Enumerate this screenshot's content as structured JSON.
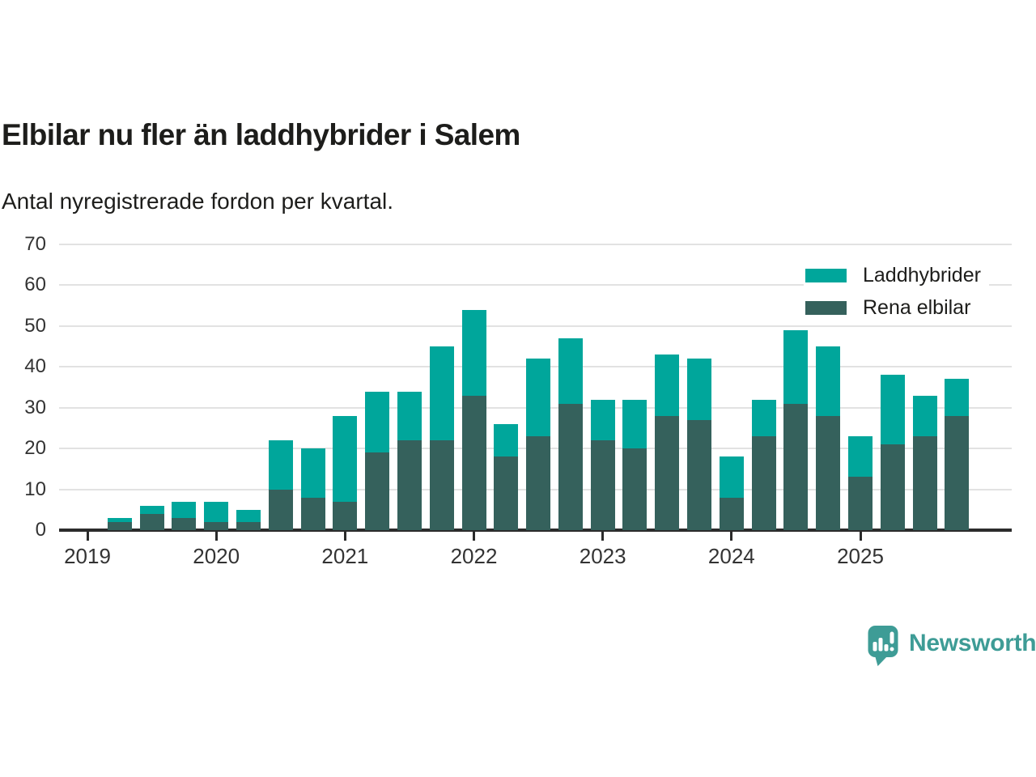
{
  "header": {
    "title": "Elbilar nu fler än laddhybrider i Salem",
    "subtitle": "Antal nyregistrerade fordon per kvartal."
  },
  "chart_data": {
    "type": "bar",
    "stacked": true,
    "title": "Elbilar nu fler än laddhybrider i Salem",
    "subtitle": "Antal nyregistrerade fordon per kvartal.",
    "x": [
      "2019 Q2",
      "2019 Q3",
      "2019 Q4",
      "2020 Q1",
      "2020 Q2",
      "2020 Q3",
      "2020 Q4",
      "2021 Q1",
      "2021 Q2",
      "2021 Q3",
      "2021 Q4",
      "2022 Q1",
      "2022 Q2",
      "2022 Q3",
      "2022 Q4",
      "2023 Q1",
      "2023 Q2",
      "2023 Q3",
      "2023 Q4",
      "2024 Q1",
      "2024 Q2",
      "2024 Q3",
      "2024 Q4",
      "2025 Q1",
      "2025 Q2",
      "2025 Q3",
      "2025 Q4"
    ],
    "series": [
      {
        "name": "Laddhybrider",
        "color": "#00a69b",
        "values": [
          1,
          2,
          4,
          5,
          3,
          12,
          12,
          21,
          15,
          12,
          23,
          21,
          8,
          19,
          16,
          10,
          12,
          15,
          15,
          10,
          9,
          18,
          17,
          10,
          17,
          10,
          9
        ]
      },
      {
        "name": "Rena elbilar",
        "color": "#35615c",
        "values": [
          2,
          4,
          3,
          2,
          2,
          10,
          8,
          7,
          19,
          22,
          22,
          33,
          18,
          23,
          31,
          22,
          20,
          28,
          27,
          8,
          23,
          31,
          28,
          13,
          21,
          23,
          28
        ]
      }
    ],
    "totals": [
      3,
      6,
      7,
      7,
      5,
      22,
      20,
      28,
      34,
      34,
      45,
      54,
      26,
      42,
      47,
      32,
      32,
      43,
      42,
      18,
      32,
      49,
      45,
      23,
      38,
      33,
      37
    ],
    "ylim": [
      0,
      70
    ],
    "yticks": [
      0,
      10,
      20,
      30,
      40,
      50,
      60,
      70
    ],
    "x_tick_labels": [
      "2019",
      "2020",
      "2021",
      "2022",
      "2023",
      "2024",
      "2025"
    ],
    "grid": "horizontal",
    "legend_position": "top-right"
  },
  "colors": {
    "laddhybrider": "#00a69b",
    "rena_elbilar": "#35615c",
    "gridline": "#e2e2e2",
    "axis": "#2b2b2b",
    "brand": "#3e9c96"
  },
  "footer": {
    "brand": "Newsworthy"
  }
}
